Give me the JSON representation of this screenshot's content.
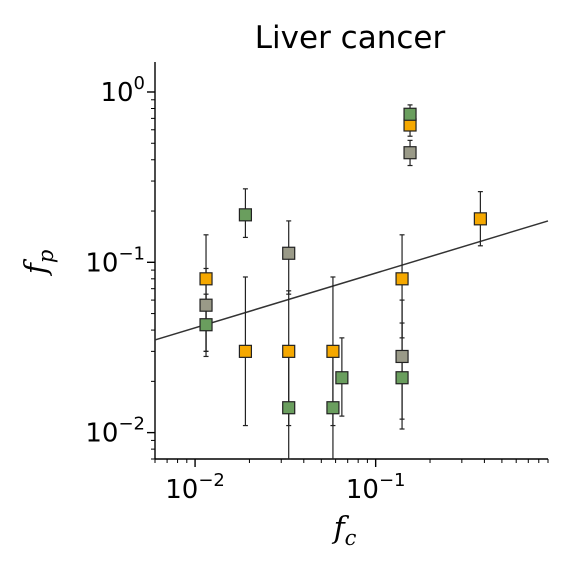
{
  "chart_data": {
    "type": "scatter",
    "title": "Liver cancer",
    "xlabel": "f_c",
    "ylabel": "f_p",
    "xscale": "log",
    "yscale": "log",
    "xlim": [
      0.006,
      0.9
    ],
    "ylim": [
      0.007,
      1.5
    ],
    "xticks": [
      {
        "value": 0.01,
        "base": "10",
        "exp": "−2"
      },
      {
        "value": 0.1,
        "base": "10",
        "exp": "−1"
      }
    ],
    "yticks": [
      {
        "value": 0.01,
        "base": "10",
        "exp": "−2"
      },
      {
        "value": 0.1,
        "base": "10",
        "exp": "−1"
      },
      {
        "value": 1,
        "base": "10",
        "exp": "0"
      }
    ],
    "grid": false,
    "legend": "none",
    "marker": "square",
    "fit_line": {
      "x": [
        0.006,
        0.9
      ],
      "y": [
        0.035,
        0.175
      ],
      "color": "#333333"
    },
    "series": [
      {
        "color": "#f5a800",
        "points": [
          {
            "x": 0.0115,
            "y": 0.08,
            "lo": 0.03,
            "hi": 0.145
          },
          {
            "x": 0.019,
            "y": 0.03,
            "lo": 0.011,
            "hi": 0.082
          },
          {
            "x": 0.033,
            "y": 0.03,
            "lo": 0.011,
            "hi": 0.068
          },
          {
            "x": 0.058,
            "y": 0.03,
            "lo": 0.011,
            "hi": 0.082
          },
          {
            "x": 0.14,
            "y": 0.08,
            "lo": 0.036,
            "hi": 0.145
          },
          {
            "x": 0.155,
            "y": 0.64,
            "lo": 0.55,
            "hi": 0.74
          },
          {
            "x": 0.38,
            "y": 0.18,
            "lo": 0.125,
            "hi": 0.26
          }
        ]
      },
      {
        "color": "#9a9a88",
        "points": [
          {
            "x": 0.0115,
            "y": 0.056,
            "lo": 0.03,
            "hi": 0.092
          },
          {
            "x": 0.033,
            "y": 0.113,
            "lo": 0.065,
            "hi": 0.175
          },
          {
            "x": 0.14,
            "y": 0.028,
            "lo": 0.012,
            "hi": 0.06
          },
          {
            "x": 0.155,
            "y": 0.44,
            "lo": 0.37,
            "hi": 0.52
          }
        ]
      },
      {
        "color": "#6a9e5e",
        "points": [
          {
            "x": 0.0115,
            "y": 0.043,
            "lo": 0.028,
            "hi": 0.065
          },
          {
            "x": 0.019,
            "y": 0.19,
            "lo": 0.14,
            "hi": 0.27
          },
          {
            "x": 0.033,
            "y": 0.014,
            "lo": 0.007,
            "hi": 0.03
          },
          {
            "x": 0.058,
            "y": 0.014,
            "lo": 0.007,
            "hi": 0.03
          },
          {
            "x": 0.065,
            "y": 0.021,
            "lo": 0.0125,
            "hi": 0.036
          },
          {
            "x": 0.14,
            "y": 0.021,
            "lo": 0.0105,
            "hi": 0.044
          },
          {
            "x": 0.155,
            "y": 0.74,
            "lo": 0.62,
            "hi": 0.84
          }
        ]
      }
    ]
  }
}
